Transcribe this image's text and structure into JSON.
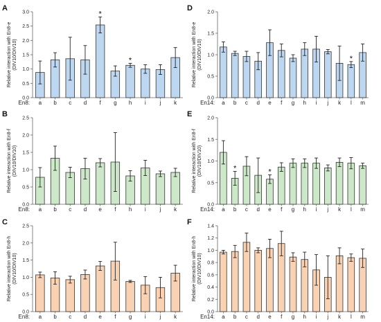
{
  "chart_data": [
    {
      "panel": "A",
      "type": "bar",
      "ylabel": [
        "Relative interaction with En8-e",
        "(DIV10/DIV10)"
      ],
      "xprefix": "En8:",
      "categories": [
        "a",
        "b",
        "c",
        "d",
        "f",
        "g",
        "h",
        "i",
        "j",
        "k"
      ],
      "values": [
        0.88,
        1.32,
        1.36,
        1.32,
        2.54,
        0.93,
        1.13,
        1.0,
        0.98,
        1.4
      ],
      "errors": [
        0.4,
        0.25,
        0.75,
        0.5,
        0.28,
        0.18,
        0.07,
        0.15,
        0.17,
        0.35
      ],
      "significant": [
        false,
        false,
        false,
        false,
        true,
        false,
        true,
        false,
        false,
        false
      ],
      "ylim": [
        0,
        3.0
      ],
      "yticks": [
        "0.0",
        "0.5",
        "1.0",
        "1.5",
        "2.0",
        "2.5",
        "3.0"
      ],
      "color": "#bcd7ef"
    },
    {
      "panel": "B",
      "type": "bar",
      "ylabel": [
        "Relative interaction with En8-f",
        "(DIV10/DIV10)"
      ],
      "xprefix": "En8:",
      "categories": [
        "a",
        "b",
        "c",
        "d",
        "e",
        "f",
        "h",
        "i",
        "j",
        "k"
      ],
      "values": [
        0.78,
        1.33,
        0.92,
        1.03,
        1.2,
        1.22,
        0.82,
        1.05,
        0.88,
        0.92
      ],
      "errors": [
        0.28,
        0.35,
        0.15,
        0.3,
        0.12,
        0.85,
        0.15,
        0.22,
        0.08,
        0.12
      ],
      "significant": [
        false,
        false,
        false,
        false,
        false,
        false,
        false,
        false,
        false,
        false
      ],
      "ylim": [
        0,
        2.5
      ],
      "yticks": [
        "0.0",
        "0.5",
        "1.0",
        "1.5",
        "2.0",
        "2.5"
      ],
      "color": "#cde8c8"
    },
    {
      "panel": "C",
      "type": "bar",
      "ylabel": [
        "Relative interaction with En8-h",
        "(DIV10/DIV10)"
      ],
      "xprefix": "En8:",
      "categories": [
        "a",
        "b",
        "c",
        "d",
        "e",
        "f",
        "g",
        "i",
        "j",
        "k"
      ],
      "values": [
        1.07,
        0.98,
        0.93,
        1.08,
        1.33,
        1.47,
        0.88,
        0.77,
        0.7,
        1.12
      ],
      "errors": [
        0.08,
        0.18,
        0.1,
        0.13,
        0.13,
        0.55,
        0.03,
        0.25,
        0.3,
        0.23
      ],
      "significant": [
        false,
        false,
        false,
        false,
        false,
        false,
        false,
        false,
        false,
        false
      ],
      "ylim": [
        0,
        2.5
      ],
      "yticks": [
        "0.0",
        "0.5",
        "1.0",
        "1.5",
        "2.0",
        "2.5"
      ],
      "color": "#f9d2b4"
    },
    {
      "panel": "D",
      "type": "bar",
      "ylabel": [
        "Relative interaction with En8-e",
        "(DIV10/DIV10)"
      ],
      "xprefix": "En14:",
      "categories": [
        "a",
        "b",
        "c",
        "d",
        "e",
        "f",
        "g",
        "h",
        "i",
        "j",
        "k",
        "l",
        "m"
      ],
      "values": [
        1.18,
        1.03,
        0.96,
        0.85,
        1.28,
        1.1,
        0.92,
        1.13,
        1.13,
        1.07,
        0.8,
        0.77,
        1.05
      ],
      "errors": [
        0.12,
        0.05,
        0.12,
        0.2,
        0.3,
        0.15,
        0.08,
        0.15,
        0.3,
        0.05,
        0.4,
        0.07,
        0.2
      ],
      "significant": [
        false,
        false,
        false,
        false,
        false,
        false,
        false,
        false,
        false,
        false,
        false,
        true,
        false
      ],
      "ylim": [
        0,
        2.0
      ],
      "yticks": [
        "0.0",
        "0.5",
        "1.0",
        "1.5",
        "2.0"
      ],
      "color": "#bcd7ef"
    },
    {
      "panel": "E",
      "type": "bar",
      "ylabel": [
        "Relative interaction with En8-f",
        "(DIV10/DIV10)"
      ],
      "xprefix": "En14:",
      "categories": [
        "a",
        "b",
        "c",
        "d",
        "e",
        "f",
        "g",
        "h",
        "i",
        "j",
        "k",
        "l",
        "m"
      ],
      "values": [
        1.2,
        0.6,
        0.88,
        0.67,
        0.58,
        0.86,
        0.95,
        0.95,
        0.95,
        0.84,
        0.97,
        0.95,
        0.89
      ],
      "errors": [
        0.27,
        0.16,
        0.22,
        0.4,
        0.1,
        0.1,
        0.1,
        0.1,
        0.12,
        0.07,
        0.1,
        0.13,
        0.06
      ],
      "significant": [
        false,
        true,
        false,
        false,
        true,
        false,
        false,
        false,
        false,
        false,
        false,
        false,
        false
      ],
      "ylim": [
        0,
        2.0
      ],
      "yticks": [
        "0.0",
        "0.5",
        "1.0",
        "1.5",
        "2.0"
      ],
      "color": "#cde8c8"
    },
    {
      "panel": "F",
      "type": "bar",
      "ylabel": [
        "Relative interaction with En8-h",
        "(DIV10/DIV10)"
      ],
      "xprefix": "En14:",
      "categories": [
        "a",
        "b",
        "c",
        "d",
        "e",
        "f",
        "g",
        "h",
        "i",
        "j",
        "k",
        "l",
        "m"
      ],
      "values": [
        0.97,
        0.98,
        1.13,
        1.0,
        1.03,
        1.11,
        0.89,
        0.85,
        0.68,
        0.56,
        0.91,
        0.88,
        0.87
      ],
      "errors": [
        0.03,
        0.1,
        0.15,
        0.04,
        0.15,
        0.2,
        0.07,
        0.12,
        0.25,
        0.35,
        0.13,
        0.06,
        0.15
      ],
      "significant": [
        false,
        false,
        false,
        false,
        false,
        false,
        false,
        false,
        false,
        false,
        false,
        false,
        false
      ],
      "ylim": [
        0,
        1.4
      ],
      "yticks": [
        "0.0",
        "0.2",
        "0.4",
        "0.6",
        "0.8",
        "1.0",
        "1.2",
        "1.4"
      ],
      "color": "#f9d2b4"
    }
  ]
}
